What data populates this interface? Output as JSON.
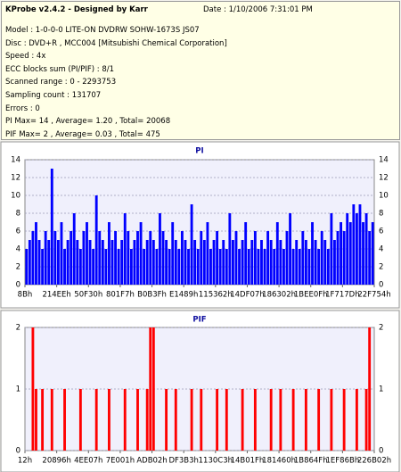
{
  "header": {
    "title": "KProbe v2.4.2 - Designed by Karr",
    "date": "Date : 1/10/2006 7:31:01 PM",
    "lines": [
      "Model : 1-0-0-0 LITE-ON DVDRW SOHW-1673S JS07",
      "Disc : DVD+R , MCC004 [Mitsubishi Chemical Corporation]",
      "Speed : 4x",
      "ECC blocks sum (PI/PIF) : 8/1",
      "Scanned range : 0 - 2293753",
      "Sampling count : 131707",
      "Errors : 0",
      "PI Max= 14 , Average= 1.20 , Total= 20068",
      "PIF Max= 2 , Average= 0.03 , Total= 475"
    ]
  },
  "chart_data": [
    {
      "type": "bar",
      "title": "PI",
      "color": "#0000ff",
      "grid": true,
      "values": [
        4,
        5,
        6,
        7,
        5,
        4,
        6,
        5,
        13,
        6,
        5,
        7,
        4,
        5,
        6,
        8,
        5,
        4,
        6,
        7,
        5,
        4,
        10,
        6,
        5,
        4,
        7,
        5,
        6,
        4,
        5,
        8,
        6,
        4,
        5,
        6,
        7,
        4,
        5,
        6,
        5,
        4,
        8,
        6,
        5,
        4,
        7,
        5,
        4,
        6,
        5,
        4,
        9,
        5,
        4,
        6,
        5,
        7,
        4,
        5,
        6,
        4,
        5,
        4,
        8,
        5,
        6,
        4,
        5,
        7,
        4,
        5,
        6,
        4,
        5,
        4,
        6,
        5,
        4,
        7,
        5,
        4,
        6,
        8,
        4,
        5,
        4,
        6,
        5,
        4,
        7,
        5,
        4,
        6,
        5,
        4,
        8,
        5,
        6,
        7,
        6,
        8,
        7,
        9,
        8,
        9,
        7,
        8,
        6,
        7
      ],
      "xlim": [
        0,
        110
      ],
      "xticks": [
        {
          "value": 0,
          "label": "8Bh"
        },
        {
          "value": 10,
          "label": "214EEh"
        },
        {
          "value": 20,
          "label": "50F30h"
        },
        {
          "value": 30,
          "label": "801F7h"
        },
        {
          "value": 40,
          "label": "B0B3Fh"
        },
        {
          "value": 50,
          "label": "E1489h"
        },
        {
          "value": 60,
          "label": "115362h"
        },
        {
          "value": 70,
          "label": "14DF07h"
        },
        {
          "value": 80,
          "label": "186302h"
        },
        {
          "value": 90,
          "label": "1BEE0Fh"
        },
        {
          "value": 100,
          "label": "1F717Dh"
        },
        {
          "value": 110,
          "label": "22F754h"
        }
      ],
      "ylim": [
        0,
        14
      ],
      "yticks": [
        0,
        2,
        4,
        6,
        8,
        10,
        12,
        14
      ]
    },
    {
      "type": "bar",
      "title": "PIF",
      "color": "#ff0000",
      "grid": true,
      "values": [
        0,
        0,
        2,
        1,
        0,
        1,
        0,
        0,
        1,
        0,
        0,
        0,
        1,
        0,
        0,
        0,
        0,
        1,
        0,
        0,
        0,
        0,
        1,
        0,
        0,
        0,
        1,
        0,
        0,
        0,
        0,
        1,
        0,
        0,
        0,
        1,
        0,
        0,
        1,
        2,
        2,
        0,
        0,
        0,
        1,
        0,
        0,
        1,
        0,
        0,
        0,
        0,
        1,
        0,
        0,
        1,
        0,
        0,
        0,
        0,
        1,
        0,
        0,
        1,
        0,
        0,
        0,
        0,
        1,
        0,
        0,
        0,
        1,
        0,
        0,
        0,
        0,
        1,
        0,
        0,
        1,
        0,
        0,
        0,
        1,
        0,
        0,
        0,
        1,
        0,
        0,
        0,
        1,
        0,
        0,
        0,
        1,
        0,
        0,
        0,
        1,
        0,
        0,
        0,
        1,
        0,
        0,
        1,
        2,
        0
      ],
      "xlim": [
        0,
        110
      ],
      "xticks": [
        {
          "value": 0,
          "label": "12h"
        },
        {
          "value": 10,
          "label": "20896h"
        },
        {
          "value": 20,
          "label": "4EE07h"
        },
        {
          "value": 30,
          "label": "7E001h"
        },
        {
          "value": 40,
          "label": "ADB02h"
        },
        {
          "value": 50,
          "label": "DF3B3h"
        },
        {
          "value": 60,
          "label": "1130C3h"
        },
        {
          "value": 70,
          "label": "14B01Fh"
        },
        {
          "value": 80,
          "label": "181460h"
        },
        {
          "value": 90,
          "label": "1B864Fh"
        },
        {
          "value": 100,
          "label": "1EF86Bh"
        },
        {
          "value": 110,
          "label": "226B02h"
        }
      ],
      "ylim": [
        0,
        2
      ],
      "yticks": [
        0,
        1,
        2
      ]
    }
  ]
}
